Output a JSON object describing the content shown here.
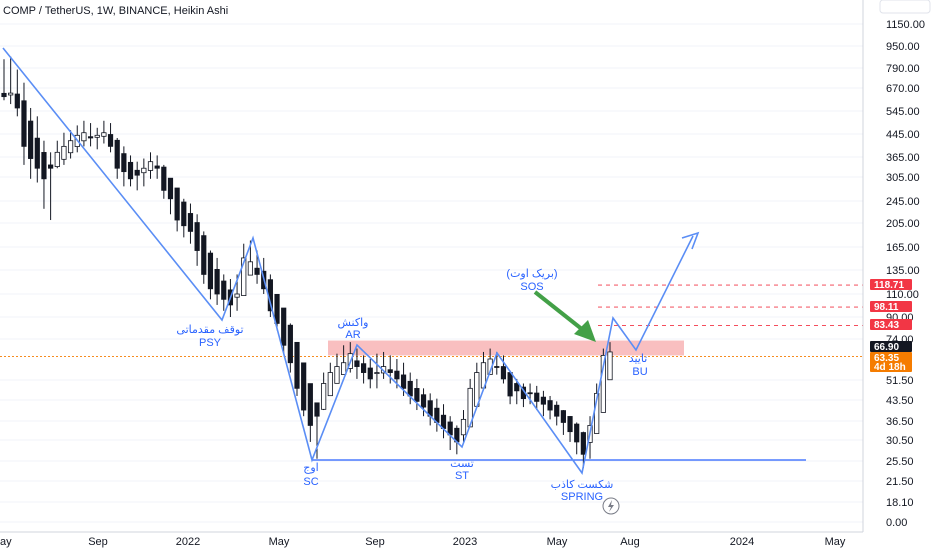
{
  "chart_data": {
    "type": "candlestick",
    "title": "COMP / TetherUS, 1W, BINANCE, Heikin Ashi",
    "y_scale": "log",
    "y_ticks": [
      "1150.00",
      "950.00",
      "790.00",
      "670.00",
      "545.00",
      "445.00",
      "365.00",
      "305.00",
      "245.00",
      "205.00",
      "165.00",
      "135.00",
      "110.00",
      "90.00",
      "74.00",
      "51.50",
      "43.50",
      "36.50",
      "30.50",
      "25.50",
      "21.50",
      "18.10",
      "0.00"
    ],
    "x_ticks": [
      "ay",
      "Sep",
      "2022",
      "May",
      "Sep",
      "2023",
      "May",
      "Aug",
      "2024",
      "May"
    ],
    "price_tags": [
      {
        "value": "118.71",
        "color": "#f23645"
      },
      {
        "value": "98.11",
        "color": "#f23645"
      },
      {
        "value": "83.43",
        "color": "#f23645"
      },
      {
        "value": "66.90",
        "color": "#131722"
      },
      {
        "value": "63.35",
        "color": "#f57c00"
      },
      {
        "value": "4d 18h",
        "color": "#f57c00"
      }
    ],
    "resistance_zone": [
      64,
      73
    ],
    "support_level": 25.5,
    "annotations": [
      {
        "fa": "توقف مقدماتی",
        "en": "PSY"
      },
      {
        "fa": "واکنش",
        "en": "AR"
      },
      {
        "fa": "اوج",
        "en": "SC"
      },
      {
        "fa": "تست",
        "en": "ST"
      },
      {
        "fa": "شکست کاذب",
        "en": "SPRING"
      },
      {
        "fa": "(بریک اوت)",
        "en": "SOS"
      },
      {
        "fa": "تایید",
        "en": "BU"
      }
    ],
    "candles_hlc": [
      [
        850,
        600,
        620
      ],
      [
        870,
        580,
        640
      ],
      [
        780,
        520,
        560
      ],
      [
        700,
        340,
        400
      ],
      [
        560,
        300,
        360
      ],
      [
        520,
        290,
        330
      ],
      [
        420,
        230,
        300
      ],
      [
        380,
        210,
        330
      ],
      [
        420,
        330,
        380
      ],
      [
        450,
        340,
        400
      ],
      [
        460,
        360,
        420
      ],
      [
        480,
        380,
        440
      ],
      [
        500,
        400,
        450
      ],
      [
        490,
        400,
        430
      ],
      [
        470,
        390,
        440
      ],
      [
        500,
        410,
        450
      ],
      [
        490,
        380,
        400
      ],
      [
        430,
        300,
        330
      ],
      [
        400,
        280,
        320
      ],
      [
        370,
        280,
        300
      ],
      [
        350,
        270,
        310
      ],
      [
        360,
        280,
        330
      ],
      [
        380,
        300,
        350
      ],
      [
        370,
        300,
        330
      ],
      [
        340,
        250,
        270
      ],
      [
        300,
        220,
        250
      ],
      [
        270,
        190,
        210
      ],
      [
        250,
        180,
        200
      ],
      [
        240,
        170,
        190
      ],
      [
        220,
        140,
        160
      ],
      [
        190,
        120,
        130
      ],
      [
        160,
        105,
        115
      ],
      [
        150,
        100,
        110
      ],
      [
        130,
        95,
        105
      ],
      [
        125,
        90,
        100
      ],
      [
        130,
        95,
        110
      ],
      [
        170,
        110,
        150
      ],
      [
        175,
        130,
        145
      ],
      [
        160,
        120,
        130
      ],
      [
        150,
        110,
        115
      ],
      [
        130,
        90,
        95
      ],
      [
        110,
        80,
        85
      ],
      [
        95,
        65,
        70
      ],
      [
        85,
        55,
        60
      ],
      [
        70,
        45,
        48
      ],
      [
        55,
        38,
        40
      ],
      [
        45,
        30,
        35
      ],
      [
        42,
        26,
        38
      ],
      [
        55,
        40,
        50
      ],
      [
        60,
        45,
        55
      ],
      [
        65,
        50,
        58
      ],
      [
        70,
        55,
        60
      ],
      [
        72,
        55,
        65
      ],
      [
        68,
        52,
        58
      ],
      [
        64,
        50,
        55
      ],
      [
        62,
        48,
        52
      ],
      [
        65,
        48,
        55
      ],
      [
        66,
        52,
        58
      ],
      [
        64,
        50,
        55
      ],
      [
        62,
        48,
        52
      ],
      [
        60,
        45,
        48
      ],
      [
        55,
        42,
        45
      ],
      [
        52,
        40,
        43
      ],
      [
        48,
        38,
        41
      ],
      [
        46,
        35,
        38
      ],
      [
        44,
        33,
        36
      ],
      [
        42,
        31,
        34
      ],
      [
        38,
        28,
        32
      ],
      [
        35,
        27,
        30
      ],
      [
        40,
        30,
        37
      ],
      [
        52,
        38,
        48
      ],
      [
        60,
        46,
        55
      ],
      [
        66,
        52,
        60
      ],
      [
        68,
        55,
        62
      ],
      [
        66,
        54,
        58
      ],
      [
        64,
        50,
        52
      ],
      [
        56,
        42,
        45
      ],
      [
        52,
        42,
        47
      ],
      [
        50,
        41,
        44
      ],
      [
        50,
        42,
        46
      ],
      [
        49,
        40,
        43
      ],
      [
        47,
        38,
        42
      ],
      [
        45,
        37,
        40
      ],
      [
        43,
        35,
        38
      ],
      [
        40,
        32,
        36
      ],
      [
        38,
        30,
        33
      ],
      [
        36,
        27,
        30
      ],
      [
        33,
        24,
        27
      ],
      [
        38,
        26,
        35
      ],
      [
        50,
        34,
        46
      ],
      [
        68,
        45,
        64
      ],
      [
        72,
        55,
        66
      ]
    ]
  }
}
